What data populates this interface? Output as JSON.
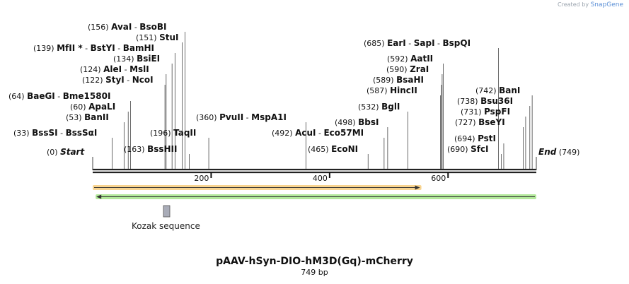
{
  "credit": {
    "prefix": "Created by",
    "brand": "SnapGene"
  },
  "plasmid": {
    "name": "pAAV-hSyn-DIO-hM3D(Gq)-mCherry",
    "length_text": "749 bp",
    "length": 749
  },
  "start_label": "Start",
  "end_label": "End",
  "start_pos": "(0)",
  "end_pos": "(749)",
  "ruler_ticks": [
    200,
    400,
    600
  ],
  "sites": [
    {
      "pos": 33,
      "pos_text": "(33)",
      "names": [
        "BssSI",
        "BssSαI"
      ]
    },
    {
      "pos": 53,
      "pos_text": "(53)",
      "names": [
        "BanII"
      ]
    },
    {
      "pos": 60,
      "pos_text": "(60)",
      "names": [
        "ApaLI"
      ]
    },
    {
      "pos": 64,
      "pos_text": "(64)",
      "names": [
        "BaeGI",
        "Bme1580I"
      ]
    },
    {
      "pos": 122,
      "pos_text": "(122)",
      "names": [
        "StyI",
        "NcoI"
      ]
    },
    {
      "pos": 124,
      "pos_text": "(124)",
      "names": [
        "AleI",
        "MslI"
      ]
    },
    {
      "pos": 134,
      "pos_text": "(134)",
      "names": [
        "BsiEI"
      ]
    },
    {
      "pos": 139,
      "pos_text": "(139)",
      "names": [
        "MfII *",
        "BstYI",
        "BamHI"
      ]
    },
    {
      "pos": 151,
      "pos_text": "(151)",
      "names": [
        "StuI"
      ]
    },
    {
      "pos": 156,
      "pos_text": "(156)",
      "names": [
        "AvaI",
        "BsoBI"
      ]
    },
    {
      "pos": 163,
      "pos_text": "(163)",
      "names": [
        "BssHII"
      ]
    },
    {
      "pos": 196,
      "pos_text": "(196)",
      "names": [
        "TaqII"
      ]
    },
    {
      "pos": 360,
      "pos_text": "(360)",
      "names": [
        "PvuII",
        "MspA1I"
      ]
    },
    {
      "pos": 465,
      "pos_text": "(465)",
      "names": [
        "EcoNI"
      ]
    },
    {
      "pos": 492,
      "pos_text": "(492)",
      "names": [
        "AcuI",
        "Eco57MI"
      ]
    },
    {
      "pos": 498,
      "pos_text": "(498)",
      "names": [
        "BbsI"
      ]
    },
    {
      "pos": 532,
      "pos_text": "(532)",
      "names": [
        "BglI"
      ]
    },
    {
      "pos": 587,
      "pos_text": "(587)",
      "names": [
        "HincII"
      ]
    },
    {
      "pos": 589,
      "pos_text": "(589)",
      "names": [
        "BsaHI"
      ]
    },
    {
      "pos": 590,
      "pos_text": "(590)",
      "names": [
        "ZraI"
      ]
    },
    {
      "pos": 592,
      "pos_text": "(592)",
      "names": [
        "AatII"
      ]
    },
    {
      "pos": 685,
      "pos_text": "(685)",
      "names": [
        "EarI",
        "SapI",
        "BspQI"
      ]
    },
    {
      "pos": 690,
      "pos_text": "(690)",
      "names": [
        "SfcI"
      ]
    },
    {
      "pos": 694,
      "pos_text": "(694)",
      "names": [
        "PstI"
      ]
    },
    {
      "pos": 727,
      "pos_text": "(727)",
      "names": [
        "BseYI"
      ]
    },
    {
      "pos": 731,
      "pos_text": "(731)",
      "names": [
        "PspFI"
      ]
    },
    {
      "pos": 738,
      "pos_text": "(738)",
      "names": [
        "Bsu36I"
      ]
    },
    {
      "pos": 742,
      "pos_text": "(742)",
      "names": [
        "BanI"
      ]
    }
  ],
  "features": [
    {
      "name": "orange-orf",
      "start": 0,
      "end": 555,
      "direction": "forward",
      "color": "#f2b134"
    },
    {
      "name": "green-orf",
      "start": 5,
      "end": 749,
      "direction": "reverse",
      "color": "#7ed957"
    },
    {
      "name": "kozak",
      "label": "Kozak sequence",
      "start": 120,
      "end": 130,
      "color": "#a9acb8"
    }
  ],
  "colors": {
    "backbone": "#222222",
    "text": "#111111",
    "connector": "#444444"
  }
}
